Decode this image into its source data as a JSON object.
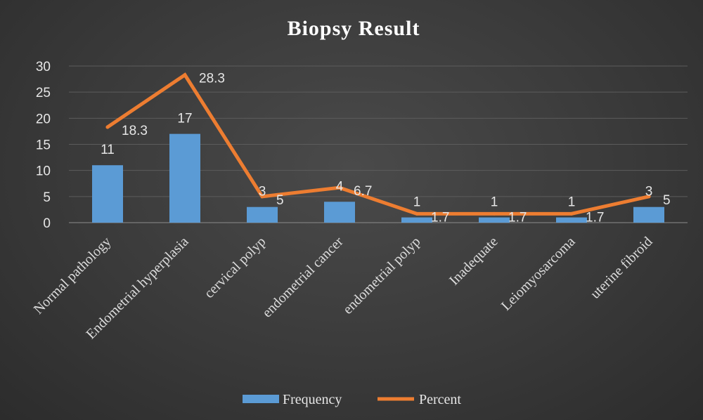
{
  "chart_data": {
    "type": "bar",
    "title": "Biopsy Result",
    "categories": [
      "Normal pathology",
      "Endometrial hyperplasia",
      "cervical polyp",
      "endometrial cancer",
      "endometrial polyp",
      "Inadequate",
      "Leiomyosarcoma",
      "uterine fibroid"
    ],
    "series": [
      {
        "name": "Frequency",
        "type": "bar",
        "color": "#5b9bd5",
        "values": [
          11,
          17,
          3,
          4,
          1,
          1,
          1,
          3
        ]
      },
      {
        "name": "Percent",
        "type": "line",
        "color": "#ed7d31",
        "values": [
          18.3,
          28.3,
          5,
          6.7,
          1.7,
          1.7,
          1.7,
          5
        ]
      }
    ],
    "ylim": [
      0,
      30
    ],
    "yticks": [
      0,
      5,
      10,
      15,
      20,
      25,
      30
    ],
    "grid": true,
    "legend": "bottom",
    "xlabel": "",
    "ylabel": ""
  }
}
